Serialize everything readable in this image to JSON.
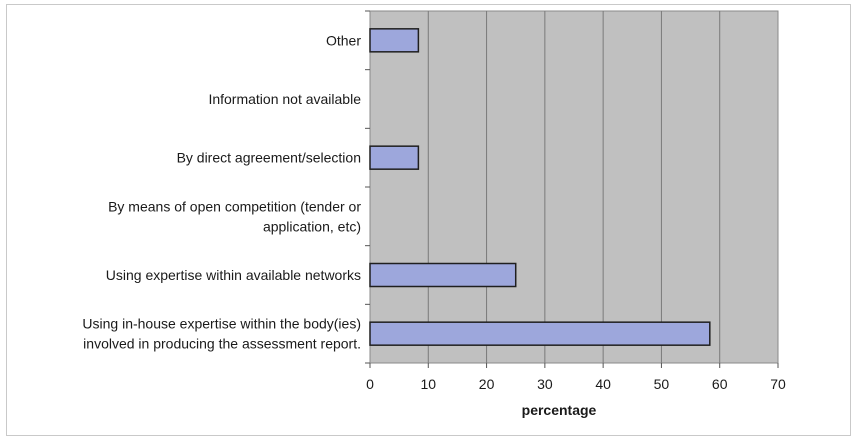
{
  "chart_data": {
    "type": "bar",
    "orientation": "horizontal",
    "categories": [
      [
        "Other"
      ],
      [
        "Information not available"
      ],
      [
        "By direct agreement/selection"
      ],
      [
        "By means of open competition (tender or",
        "application, etc)"
      ],
      [
        "Using expertise within available networks"
      ],
      [
        "Using in-house expertise within the body(ies)",
        "involved in producing the assessment report."
      ]
    ],
    "values": [
      8.3,
      0,
      8.3,
      0,
      25,
      58.3
    ],
    "xlabel": "percentage",
    "xlim": [
      0,
      70
    ],
    "xticks": [
      "0",
      "10",
      "20",
      "30",
      "40",
      "50",
      "60",
      "70"
    ],
    "grid": "vertical",
    "legend": "none"
  },
  "colors": {
    "plot_background": "#c0c0c0",
    "bar_fill": "#9da7dc",
    "bar_stroke": "#1f1f1f",
    "gridline": "#7a7a7a"
  }
}
